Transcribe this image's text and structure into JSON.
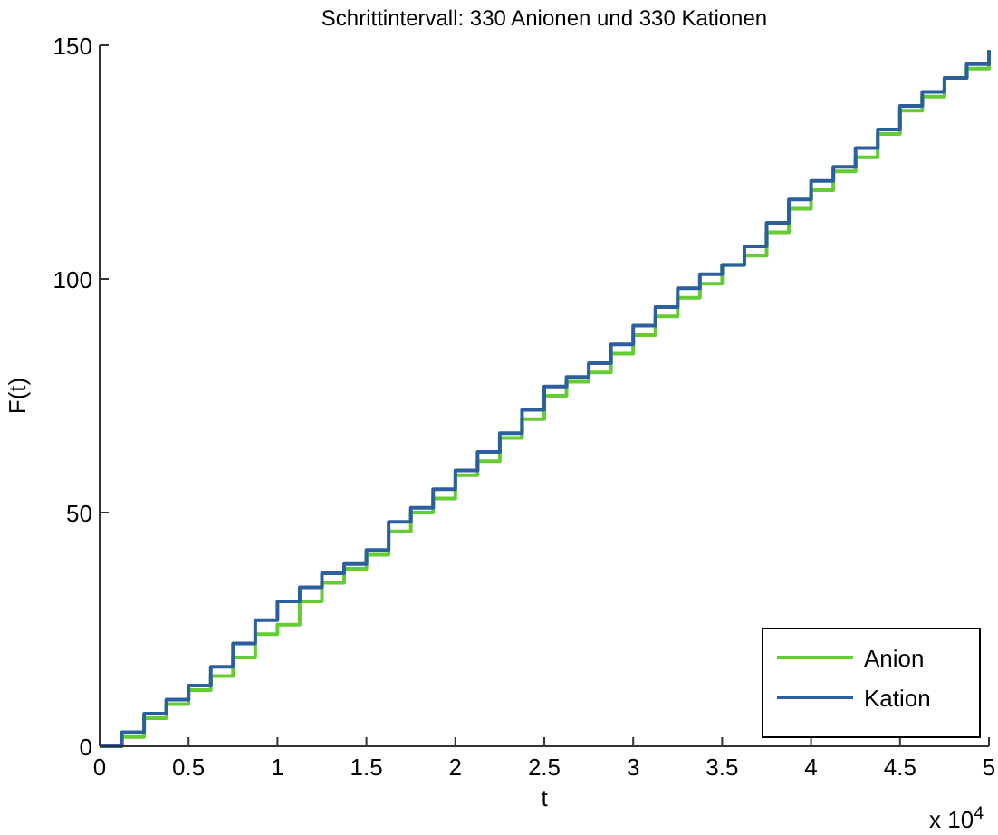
{
  "chart_data": {
    "type": "step",
    "title": "Schrittintervall: 330 Anionen und 330 Kationen",
    "xlabel": "t",
    "ylabel": "F(t)",
    "annotations": [
      "x 10$^{4}$"
    ],
    "x": [
      0,
      0.125,
      0.25,
      0.375,
      0.5,
      0.625,
      0.75,
      0.875,
      1,
      1.125,
      1.25,
      1.375,
      1.5,
      1.625,
      1.75,
      1.875,
      2,
      2.125,
      2.25,
      2.375,
      2.5,
      2.625,
      2.75,
      2.875,
      3,
      3.125,
      3.25,
      3.375,
      3.5,
      3.625,
      3.75,
      3.875,
      4,
      4.125,
      4.25,
      4.375,
      4.5,
      4.625,
      4.75,
      4.875,
      5
    ],
    "series": [
      {
        "name": "Anion",
        "color": "#66cc33",
        "values": [
          0,
          2,
          6,
          9,
          12,
          15,
          19,
          24,
          26,
          31,
          35,
          38,
          41,
          46,
          50,
          53,
          58,
          61,
          66,
          70,
          75,
          78,
          80,
          84,
          88,
          92,
          96,
          99,
          103,
          105,
          110,
          115,
          119,
          123,
          126,
          131,
          136,
          139,
          143,
          145,
          149
        ]
      },
      {
        "name": "Kation",
        "color": "#2b5f9e",
        "values": [
          0,
          3,
          7,
          10,
          13,
          17,
          22,
          27,
          31,
          34,
          37,
          39,
          42,
          48,
          51,
          55,
          59,
          63,
          67,
          72,
          77,
          79,
          82,
          86,
          90,
          94,
          98,
          101,
          103,
          107,
          112,
          117,
          121,
          124,
          128,
          132,
          137,
          140,
          143,
          146,
          149
        ]
      }
    ],
    "xlim": [
      0,
      5
    ],
    "xticks": [
      0,
      0.5,
      1,
      1.5,
      2,
      2.5,
      3,
      3.5,
      4,
      4.5,
      5
    ],
    "ylim": [
      0,
      150
    ],
    "yticks": [
      0,
      50,
      100,
      150
    ],
    "grid": false,
    "legend": "bottom right"
  }
}
